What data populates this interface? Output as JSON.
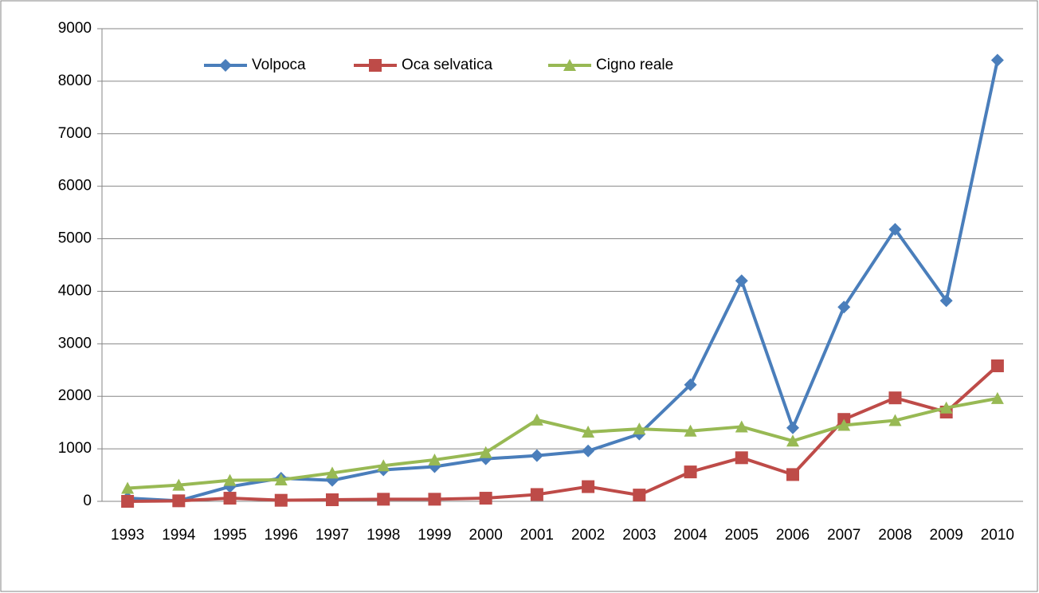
{
  "chart_data": {
    "type": "line",
    "categories": [
      "1993",
      "1994",
      "1995",
      "1996",
      "1997",
      "1998",
      "1999",
      "2000",
      "2001",
      "2002",
      "2003",
      "2004",
      "2005",
      "2006",
      "2007",
      "2008",
      "2009",
      "2010"
    ],
    "series": [
      {
        "name": "Volpoca",
        "color": "#4a7ebb",
        "marker": "diamond",
        "values": [
          60,
          10,
          280,
          440,
          400,
          600,
          660,
          810,
          870,
          960,
          1280,
          2220,
          4200,
          1400,
          3700,
          5180,
          3820,
          8400
        ]
      },
      {
        "name": "Oca selvatica",
        "color": "#be4b48",
        "marker": "square",
        "values": [
          0,
          10,
          60,
          20,
          30,
          40,
          40,
          60,
          130,
          280,
          120,
          560,
          830,
          510,
          1560,
          1970,
          1700,
          2580
        ]
      },
      {
        "name": "Cigno reale",
        "color": "#98b954",
        "marker": "triangle",
        "values": [
          250,
          310,
          400,
          410,
          540,
          680,
          790,
          930,
          1550,
          1320,
          1380,
          1340,
          1420,
          1150,
          1450,
          1540,
          1780,
          1960
        ]
      }
    ],
    "ylim": [
      0,
      9000
    ],
    "yticks": [
      0,
      1000,
      2000,
      3000,
      4000,
      5000,
      6000,
      7000,
      8000,
      9000
    ],
    "grid": true,
    "legend": "top"
  }
}
